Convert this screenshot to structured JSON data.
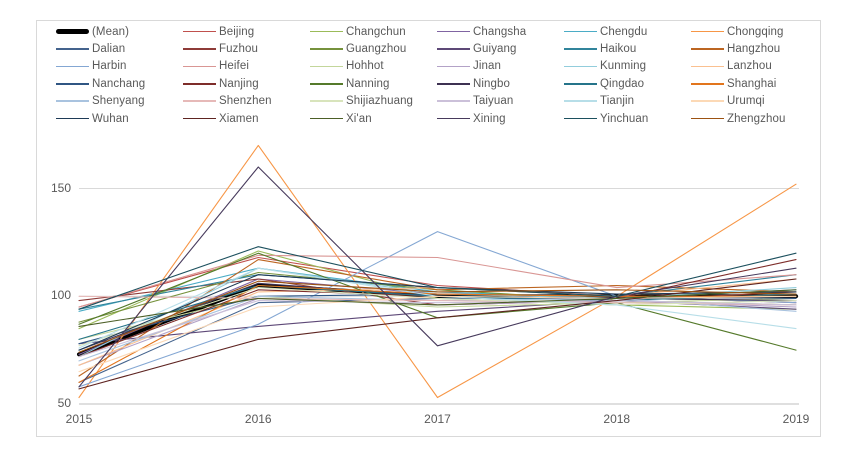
{
  "colors": {
    "frame_border": "#D9D9D9",
    "gridline": "#D9D9D9",
    "axis_line": "#BFBFBF",
    "tick_text": "#595959",
    "legend_text": "#595959",
    "background": "#FFFFFF"
  },
  "chart_data": {
    "type": "line",
    "title": "",
    "xlabel": "",
    "ylabel": "",
    "x": [
      "2015",
      "2016",
      "2017",
      "2018",
      "2019"
    ],
    "y_ticks": [
      "50",
      "100",
      "150"
    ],
    "ylim": [
      50,
      175
    ],
    "grid": true,
    "legend_position": "top",
    "legend_columns": 6,
    "series": [
      {
        "name": "(Mean)",
        "color": "#000000",
        "width": 4,
        "values": [
          73,
          105,
          100,
          100,
          100
        ]
      },
      {
        "name": "Beijing",
        "color": "#C0504D",
        "width": 1.1,
        "values": [
          95,
          118,
          105,
          100,
          97
        ]
      },
      {
        "name": "Changchun",
        "color": "#9BBB59",
        "width": 1.1,
        "values": [
          85,
          121,
          99,
          96,
          94
        ]
      },
      {
        "name": "Changsha",
        "color": "#8064A2",
        "width": 1.1,
        "values": [
          73,
          108,
          101,
          100,
          99
        ]
      },
      {
        "name": "Chengdu",
        "color": "#4BACC6",
        "width": 1.1,
        "values": [
          93,
          113,
          102,
          99,
          103
        ]
      },
      {
        "name": "Chongqing",
        "color": "#F79646",
        "width": 1.1,
        "values": [
          53,
          170,
          53,
          100,
          152
        ]
      },
      {
        "name": "Dalian",
        "color": "#44638D",
        "width": 1.1,
        "values": [
          60,
          97,
          99,
          99,
          98
        ]
      },
      {
        "name": "Fuzhou",
        "color": "#8E3B38",
        "width": 1.1,
        "values": [
          98,
          108,
          96,
          98,
          102
        ]
      },
      {
        "name": "Guangzhou",
        "color": "#76923C",
        "width": 1.1,
        "values": [
          88,
          111,
          103,
          98,
          96
        ]
      },
      {
        "name": "Guiyang",
        "color": "#5D4877",
        "width": 1.1,
        "values": [
          78,
          86,
          93,
          98,
          94
        ]
      },
      {
        "name": "Haikou",
        "color": "#31849B",
        "width": 1.1,
        "values": [
          94,
          110,
          104,
          100,
          110
        ]
      },
      {
        "name": "Hangzhou",
        "color": "#BC6521",
        "width": 1.1,
        "values": [
          63,
          117,
          103,
          105,
          102
        ]
      },
      {
        "name": "Harbin",
        "color": "#84A7D3",
        "width": 1.1,
        "values": [
          58,
          87,
          130,
          100,
          97
        ]
      },
      {
        "name": "Heifei",
        "color": "#D99694",
        "width": 1.1,
        "values": [
          95,
          119,
          118,
          104,
          110
        ]
      },
      {
        "name": "Hohhot",
        "color": "#C3D69B",
        "width": 1.1,
        "values": [
          80,
          100,
          95,
          97,
          99
        ]
      },
      {
        "name": "Jinan",
        "color": "#B3A2C7",
        "width": 1.1,
        "values": [
          68,
          99,
          96,
          98,
          95
        ]
      },
      {
        "name": "Kunming",
        "color": "#92CDDC",
        "width": 1.1,
        "values": [
          72,
          113,
          101,
          99,
          104
        ]
      },
      {
        "name": "Lanzhou",
        "color": "#FAC090",
        "width": 1.1,
        "values": [
          68,
          102,
          104,
          100,
          108
        ]
      },
      {
        "name": "Nanchang",
        "color": "#305683",
        "width": 1.1,
        "values": [
          78,
          100,
          101,
          100,
          99
        ]
      },
      {
        "name": "Nanjing",
        "color": "#7E2D2A",
        "width": 1.1,
        "values": [
          72,
          103,
          100,
          99,
          117
        ]
      },
      {
        "name": "Nanning",
        "color": "#557A2B",
        "width": 1.1,
        "values": [
          87,
          120,
          90,
          97,
          75
        ]
      },
      {
        "name": "Ningbo",
        "color": "#3E3152",
        "width": 1.1,
        "values": [
          75,
          106,
          100,
          99,
          98
        ]
      },
      {
        "name": "Qingdao",
        "color": "#25748A",
        "width": 1.1,
        "values": [
          80,
          105,
          100,
          98,
          101
        ]
      },
      {
        "name": "Shanghai",
        "color": "#E2751D",
        "width": 1.1,
        "values": [
          60,
          105,
          101,
          100,
          100
        ]
      },
      {
        "name": "Shenyang",
        "color": "#A9C3DF",
        "width": 1.1,
        "values": [
          70,
          100,
          98,
          99,
          93
        ]
      },
      {
        "name": "Shenzhen",
        "color": "#E6B9B8",
        "width": 1.1,
        "values": [
          100,
          99,
          98,
          97,
          96
        ]
      },
      {
        "name": "Shijiazhuang",
        "color": "#D8E4BC",
        "width": 1.1,
        "values": [
          77,
          104,
          99,
          96,
          98
        ]
      },
      {
        "name": "Taiyuan",
        "color": "#CBC0D9",
        "width": 1.1,
        "values": [
          72,
          98,
          97,
          98,
          96
        ]
      },
      {
        "name": "Tianjin",
        "color": "#B7DEE8",
        "width": 1.1,
        "values": [
          76,
          113,
          100,
          96,
          85
        ]
      },
      {
        "name": "Urumqi",
        "color": "#FCD9B6",
        "width": 1.1,
        "values": [
          65,
          95,
          100,
          99,
          100
        ]
      },
      {
        "name": "Wuhan",
        "color": "#1E3A56",
        "width": 1.1,
        "values": [
          75,
          110,
          104,
          101,
          102
        ]
      },
      {
        "name": "Xiamen",
        "color": "#5E2421",
        "width": 1.1,
        "values": [
          57,
          80,
          90,
          98,
          108
        ]
      },
      {
        "name": "Xi'an",
        "color": "#4C5F27",
        "width": 1.1,
        "values": [
          86,
          99,
          96,
          99,
          103
        ]
      },
      {
        "name": "Xining",
        "color": "#473A5C",
        "width": 1.1,
        "values": [
          58,
          160,
          77,
          100,
          113
        ]
      },
      {
        "name": "Yinchuan",
        "color": "#1C505E",
        "width": 1.1,
        "values": [
          94,
          123,
          104,
          100,
          120
        ]
      },
      {
        "name": "Zhengzhou",
        "color": "#9C5212",
        "width": 1.1,
        "values": [
          74,
          107,
          102,
          103,
          101
        ]
      }
    ]
  }
}
